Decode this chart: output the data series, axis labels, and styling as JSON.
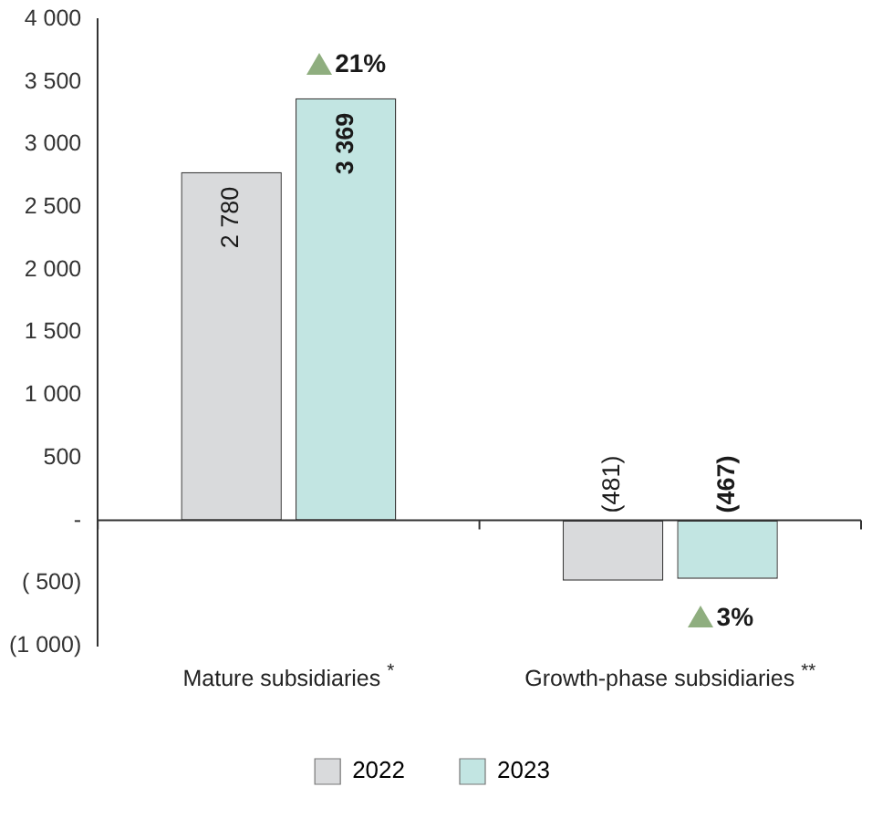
{
  "chart_data": {
    "type": "bar",
    "categories": [
      "Mature subsidiaries $^{*}$",
      "Growth-phase subsidiaries $^{**}$"
    ],
    "series": [
      {
        "name": "2022",
        "color": "#d9dadc",
        "values": [
          2780,
          -481
        ],
        "value_labels": [
          "2 780",
          "(481)"
        ]
      },
      {
        "name": "2023",
        "color": "#c2e5e2",
        "values": [
          3369,
          -467
        ],
        "value_labels": [
          "3 369",
          "(467)"
        ]
      }
    ],
    "ylim": [
      -1000,
      4000
    ],
    "yticks": [
      {
        "value": -1000,
        "label": "(1 000)"
      },
      {
        "value": -500,
        "label": "( 500)"
      },
      {
        "value": 0,
        "label": "-"
      },
      500,
      {
        "value": 1000,
        "label": "1 000"
      },
      {
        "value": 1500,
        "label": "1 500"
      },
      {
        "value": 2000,
        "label": "2 000"
      },
      {
        "value": 2500,
        "label": "2 500"
      },
      {
        "value": 3000,
        "label": "3 000"
      },
      {
        "value": 3500,
        "label": "3 500"
      },
      {
        "value": 4000,
        "label": "4 000"
      }
    ],
    "annotations": [
      "21%",
      "3%"
    ],
    "ref_lines": [
      {
        "axis": "y",
        "value": 0
      }
    ],
    "grid": false,
    "legend": "bottom"
  }
}
